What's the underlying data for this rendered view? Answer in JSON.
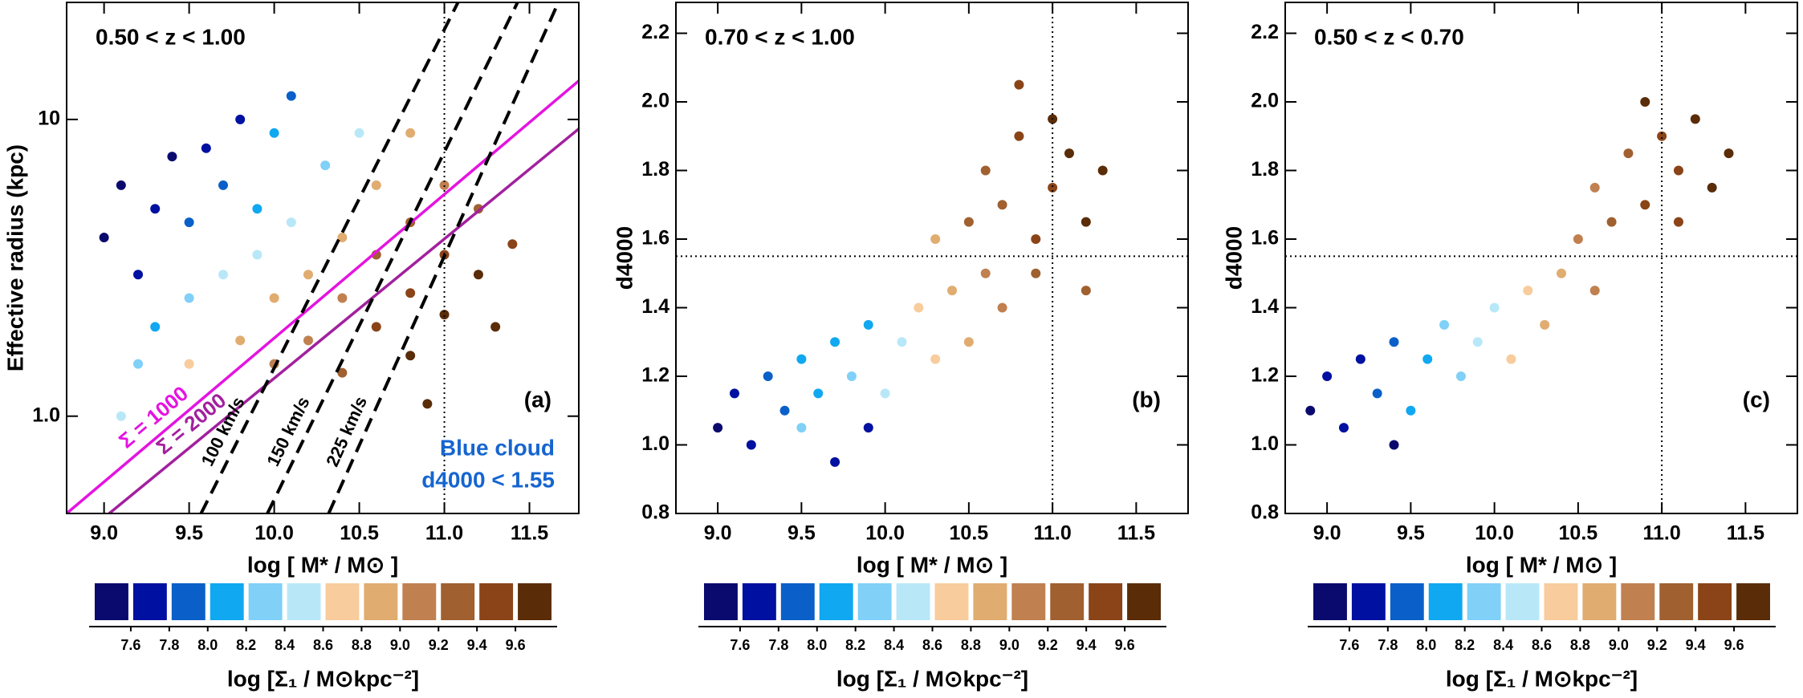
{
  "chart_data": [
    {
      "type": "scatter",
      "title": "0.50 < z < 1.00",
      "panel_label": "(a)",
      "xlabel": "log [ M* / M⊙ ]",
      "ylabel": "Effective radius (kpc)",
      "xlim": [
        8.78,
        11.79
      ],
      "ylim": [
        0.47,
        24.8
      ],
      "log_y": true,
      "xticks": [
        {
          "value": 9,
          "label": "9.0"
        },
        9.5,
        {
          "value": 10,
          "label": "10.0"
        },
        10.5,
        {
          "value": 11,
          "label": "11.0"
        },
        11.5
      ],
      "yticks": [
        {
          "value": 1,
          "label": "1.0"
        },
        10
      ],
      "vline": 11,
      "annotations": [
        {
          "text": "Blue cloud",
          "color": "#1565d0"
        },
        {
          "text": "d4000 < 1.55",
          "color": "#1565d0"
        }
      ],
      "lines": [
        {
          "label": "Σ = 1000",
          "color": "#e414e0",
          "dash": false,
          "x": [
            8.78,
            11.79
          ],
          "y": [
            0.47,
            13.5
          ]
        },
        {
          "label": "Σ = 2000",
          "color": "#a2209e",
          "dash": false,
          "x": [
            9.03,
            11.79
          ],
          "y": [
            0.47,
            9.3
          ]
        },
        {
          "label": "100 km/s",
          "color": "#000000",
          "dash": true,
          "x": [
            9.57,
            11.08
          ],
          "y": [
            0.47,
            24.8
          ]
        },
        {
          "label": "150 km/s",
          "color": "#000000",
          "dash": true,
          "x": [
            9.96,
            11.43
          ],
          "y": [
            0.47,
            24.8
          ]
        },
        {
          "label": "225 km/s",
          "color": "#000000",
          "dash": true,
          "x": [
            10.32,
            11.67
          ],
          "y": [
            0.47,
            24.8
          ]
        }
      ],
      "x": [
        9.0,
        9.1,
        9.2,
        9.3,
        9.4,
        9.5,
        9.6,
        9.7,
        9.8,
        9.9,
        10.0,
        10.1,
        9.3,
        9.5,
        9.7,
        9.9,
        10.1,
        10.3,
        10.5,
        9.2,
        9.5,
        9.8,
        10.0,
        10.2,
        10.4,
        10.6,
        10.8,
        10.0,
        10.2,
        10.4,
        10.6,
        10.8,
        11.0,
        10.4,
        10.6,
        10.8,
        11.0,
        11.2,
        10.8,
        11.0,
        11.2,
        10.9,
        11.3,
        9.1,
        11.4
      ],
      "values": [
        4.0,
        6.0,
        3.0,
        5.0,
        7.5,
        4.5,
        8.0,
        6.0,
        10.0,
        5.0,
        9.0,
        12.0,
        2.0,
        2.5,
        3.0,
        3.5,
        4.5,
        7.0,
        9.0,
        1.5,
        1.5,
        1.8,
        2.5,
        3.0,
        4.0,
        6.0,
        9.0,
        1.5,
        1.8,
        2.5,
        3.5,
        4.5,
        6.0,
        1.4,
        2.0,
        2.6,
        3.5,
        5.0,
        1.6,
        2.2,
        3.0,
        1.1,
        2.0,
        1.0,
        3.8
      ],
      "sigma": [
        7.5,
        7.5,
        7.7,
        7.6,
        7.5,
        7.8,
        7.6,
        7.9,
        7.7,
        8.1,
        8.0,
        7.9,
        8.1,
        8.3,
        8.4,
        8.5,
        8.5,
        8.3,
        8.4,
        8.3,
        8.6,
        8.8,
        8.8,
        8.9,
        8.9,
        8.8,
        8.8,
        9.0,
        9.1,
        9.1,
        9.2,
        9.2,
        9.1,
        9.3,
        9.4,
        9.4,
        9.4,
        9.3,
        9.6,
        9.6,
        9.6,
        9.7,
        9.7,
        8.5,
        9.5
      ],
      "colorbar": {
        "label": "log [Σ₁ / M⊙kpc⁻²]",
        "bins": [
          7.4,
          7.6,
          7.8,
          8.0,
          8.2,
          8.4,
          8.6,
          8.8,
          9.0,
          9.2,
          9.4,
          9.6,
          9.8
        ],
        "colors": [
          "#0a0a6e",
          "#0010a0",
          "#0a60c8",
          "#10a8f0",
          "#80d0f8",
          "#b8e8f8",
          "#f8cc9c",
          "#e0ac70",
          "#c08050",
          "#a06030",
          "#8a4418",
          "#5a2c08"
        ],
        "ticks": [
          7.6,
          7.8,
          {
            "value": 8,
            "label": "8.0"
          },
          8.2,
          8.4,
          8.6,
          8.8,
          {
            "value": 9,
            "label": "9.0"
          },
          9.2,
          9.4,
          9.6
        ]
      }
    },
    {
      "type": "scatter",
      "title": "0.70 < z < 1.00",
      "panel_label": "(b)",
      "xlabel": "log [ M* / M⊙ ]",
      "ylabel": "d4000",
      "xlim": [
        8.75,
        11.81
      ],
      "ylim": [
        0.8,
        2.29
      ],
      "log_y": false,
      "xticks": [
        {
          "value": 9,
          "label": "9.0"
        },
        9.5,
        {
          "value": 10,
          "label": "10.0"
        },
        10.5,
        {
          "value": 11,
          "label": "11.0"
        },
        11.5
      ],
      "yticks": [
        0.8,
        {
          "value": 1,
          "label": "1.0"
        },
        1.2,
        1.4,
        1.6,
        1.8,
        {
          "value": 2,
          "label": "2.0"
        },
        2.2
      ],
      "vline": 11,
      "hline": 1.55,
      "x": [
        9.0,
        9.1,
        9.2,
        9.3,
        9.4,
        9.5,
        9.6,
        9.7,
        9.5,
        9.8,
        9.9,
        10.0,
        10.1,
        10.2,
        10.3,
        10.4,
        10.5,
        10.6,
        10.7,
        10.5,
        10.6,
        10.7,
        10.8,
        10.9,
        11.0,
        11.1,
        11.2,
        10.8,
        11.0,
        11.3,
        10.9,
        10.3,
        9.9,
        9.7,
        11.2
      ],
      "values": [
        1.05,
        1.15,
        1.0,
        1.2,
        1.1,
        1.25,
        1.15,
        1.3,
        1.05,
        1.2,
        1.35,
        1.15,
        1.3,
        1.4,
        1.25,
        1.45,
        1.3,
        1.5,
        1.4,
        1.65,
        1.8,
        1.7,
        1.9,
        1.6,
        1.75,
        1.85,
        1.65,
        2.05,
        1.95,
        1.8,
        1.5,
        1.6,
        1.05,
        0.95,
        1.45
      ],
      "sigma": [
        7.5,
        7.6,
        7.7,
        7.8,
        7.9,
        8.0,
        8.1,
        8.0,
        8.2,
        8.3,
        8.1,
        8.4,
        8.5,
        8.6,
        8.7,
        8.8,
        8.9,
        9.0,
        9.1,
        9.2,
        9.3,
        9.3,
        9.4,
        9.4,
        9.5,
        9.6,
        9.6,
        9.5,
        9.7,
        9.7,
        9.2,
        8.9,
        7.7,
        7.6,
        9.3
      ],
      "colorbar": {
        "label": "log [Σ₁ / M⊙kpc⁻²]",
        "bins": [
          7.4,
          7.6,
          7.8,
          8.0,
          8.2,
          8.4,
          8.6,
          8.8,
          9.0,
          9.2,
          9.4,
          9.6,
          9.8
        ],
        "colors": [
          "#0a0a6e",
          "#0010a0",
          "#0a60c8",
          "#10a8f0",
          "#80d0f8",
          "#b8e8f8",
          "#f8cc9c",
          "#e0ac70",
          "#c08050",
          "#a06030",
          "#8a4418",
          "#5a2c08"
        ],
        "ticks": [
          7.6,
          7.8,
          {
            "value": 8,
            "label": "8.0"
          },
          8.2,
          8.4,
          8.6,
          8.8,
          {
            "value": 9,
            "label": "9.0"
          },
          9.2,
          9.4,
          9.6
        ]
      }
    },
    {
      "type": "scatter",
      "title": "0.50 < z < 0.70",
      "panel_label": "(c)",
      "xlabel": "log [ M* / M⊙ ]",
      "ylabel": "d4000",
      "xlim": [
        8.75,
        11.81
      ],
      "ylim": [
        0.8,
        2.29
      ],
      "log_y": false,
      "xticks": [
        {
          "value": 9,
          "label": "9.0"
        },
        9.5,
        {
          "value": 10,
          "label": "10.0"
        },
        10.5,
        {
          "value": 11,
          "label": "11.0"
        },
        11.5
      ],
      "yticks": [
        0.8,
        {
          "value": 1,
          "label": "1.0"
        },
        1.2,
        1.4,
        1.6,
        1.8,
        {
          "value": 2,
          "label": "2.0"
        },
        2.2
      ],
      "vline": 11,
      "hline": 1.55,
      "x": [
        8.9,
        9.0,
        9.1,
        9.2,
        9.3,
        9.4,
        9.5,
        9.6,
        9.7,
        9.8,
        9.9,
        10.0,
        10.1,
        10.2,
        10.3,
        10.4,
        10.5,
        10.6,
        10.7,
        10.8,
        10.9,
        11.0,
        11.1,
        11.2,
        11.3,
        10.9,
        11.1,
        10.6,
        9.4,
        11.4
      ],
      "values": [
        1.1,
        1.2,
        1.05,
        1.25,
        1.15,
        1.3,
        1.1,
        1.25,
        1.35,
        1.2,
        1.3,
        1.4,
        1.25,
        1.45,
        1.35,
        1.5,
        1.6,
        1.75,
        1.65,
        1.85,
        1.7,
        1.9,
        1.8,
        1.95,
        1.75,
        2.0,
        1.65,
        1.45,
        1.0,
        1.85
      ],
      "sigma": [
        7.5,
        7.6,
        7.7,
        7.6,
        7.8,
        7.9,
        8.0,
        8.1,
        8.2,
        8.3,
        8.4,
        8.5,
        8.6,
        8.7,
        8.8,
        8.9,
        9.0,
        9.1,
        9.2,
        9.3,
        9.4,
        9.4,
        9.5,
        9.6,
        9.6,
        9.7,
        9.5,
        9.0,
        7.5,
        9.7
      ],
      "colorbar": {
        "label": "log [Σ₁ / M⊙kpc⁻²]",
        "bins": [
          7.4,
          7.6,
          7.8,
          8.0,
          8.2,
          8.4,
          8.6,
          8.8,
          9.0,
          9.2,
          9.4,
          9.6,
          9.8
        ],
        "colors": [
          "#0a0a6e",
          "#0010a0",
          "#0a60c8",
          "#10a8f0",
          "#80d0f8",
          "#b8e8f8",
          "#f8cc9c",
          "#e0ac70",
          "#c08050",
          "#a06030",
          "#8a4418",
          "#5a2c08"
        ],
        "ticks": [
          7.6,
          7.8,
          {
            "value": 8,
            "label": "8.0"
          },
          8.2,
          8.4,
          8.6,
          8.8,
          {
            "value": 9,
            "label": "9.0"
          },
          9.2,
          9.4,
          9.6
        ]
      }
    }
  ]
}
